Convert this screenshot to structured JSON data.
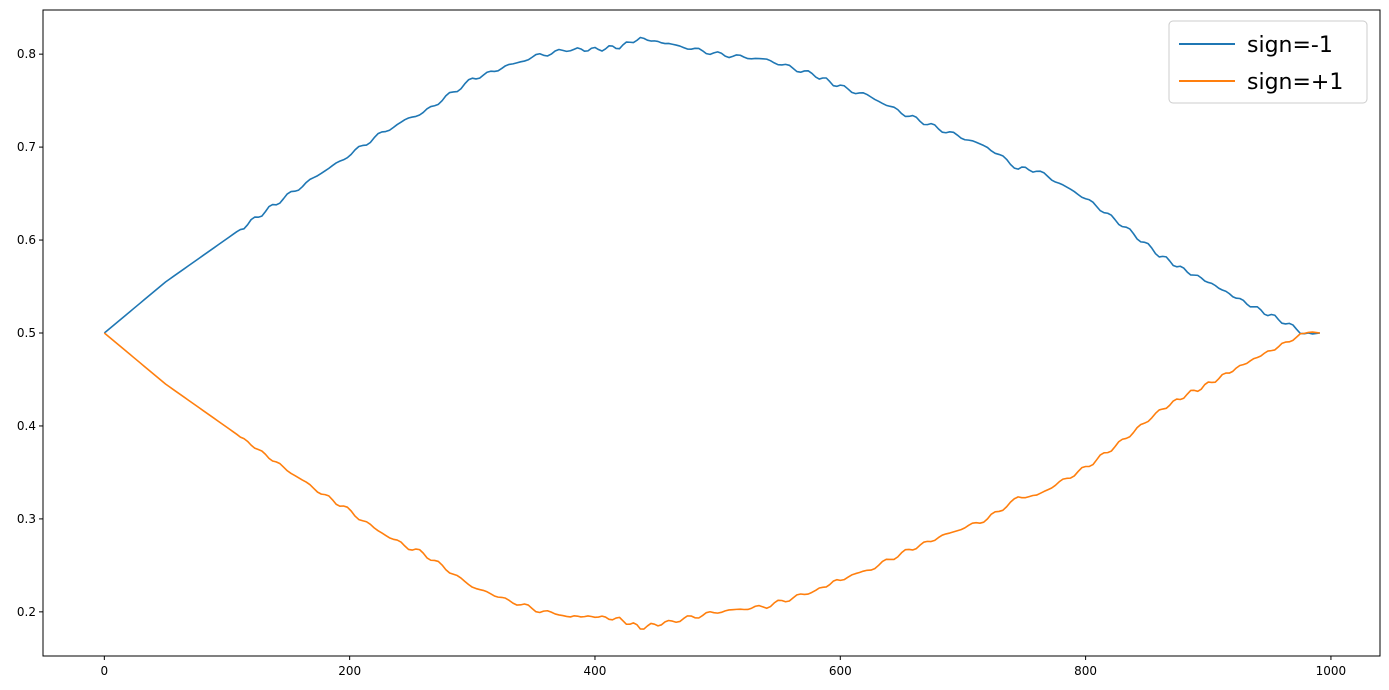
{
  "chart_data": {
    "type": "line",
    "title": "",
    "xlabel": "",
    "ylabel": "",
    "xlim": [
      -50,
      1040
    ],
    "ylim": [
      0.1525,
      0.8475
    ],
    "xticks": [
      0,
      200,
      400,
      600,
      800,
      1000
    ],
    "xtick_labels": [
      "0",
      "200",
      "400",
      "600",
      "800",
      "1000"
    ],
    "yticks": [
      0.2,
      0.3,
      0.4,
      0.5,
      0.6,
      0.7,
      0.8
    ],
    "ytick_labels": [
      "0.2",
      "0.3",
      "0.4",
      "0.5",
      "0.6",
      "0.7",
      "0.8"
    ],
    "grid": false,
    "legend_position": "top-right",
    "series": [
      {
        "name": "sign=-1",
        "color": "#1f77b4",
        "x": [
          0,
          50,
          108,
          143,
          180,
          195,
          220,
          245,
          260,
          300,
          330,
          355,
          380,
          400,
          420,
          437,
          460,
          500,
          540,
          580,
          600,
          625,
          650,
          680,
          720,
          745,
          760,
          800,
          830,
          860,
          880,
          900,
          920,
          940,
          960,
          975,
          985,
          991
        ],
        "y": [
          0.5,
          0.555,
          0.609,
          0.642,
          0.675,
          0.687,
          0.71,
          0.729,
          0.737,
          0.773,
          0.788,
          0.799,
          0.805,
          0.805,
          0.808,
          0.817,
          0.811,
          0.8,
          0.794,
          0.777,
          0.765,
          0.754,
          0.737,
          0.72,
          0.7,
          0.677,
          0.675,
          0.645,
          0.616,
          0.584,
          0.568,
          0.555,
          0.54,
          0.526,
          0.513,
          0.502,
          0.499,
          0.5
        ]
      },
      {
        "name": "sign=+1",
        "color": "#ff7f0e",
        "x": [
          0,
          50,
          108,
          143,
          180,
          195,
          220,
          245,
          260,
          300,
          330,
          355,
          380,
          400,
          420,
          437,
          460,
          500,
          540,
          580,
          600,
          625,
          650,
          680,
          720,
          745,
          760,
          800,
          830,
          860,
          880,
          900,
          920,
          940,
          960,
          975,
          985,
          991
        ],
        "y": [
          0.5,
          0.445,
          0.391,
          0.358,
          0.325,
          0.313,
          0.29,
          0.271,
          0.263,
          0.227,
          0.212,
          0.201,
          0.195,
          0.195,
          0.192,
          0.183,
          0.189,
          0.2,
          0.206,
          0.223,
          0.235,
          0.246,
          0.263,
          0.28,
          0.3,
          0.323,
          0.325,
          0.355,
          0.384,
          0.416,
          0.432,
          0.445,
          0.46,
          0.474,
          0.487,
          0.498,
          0.501,
          0.5
        ]
      }
    ]
  }
}
